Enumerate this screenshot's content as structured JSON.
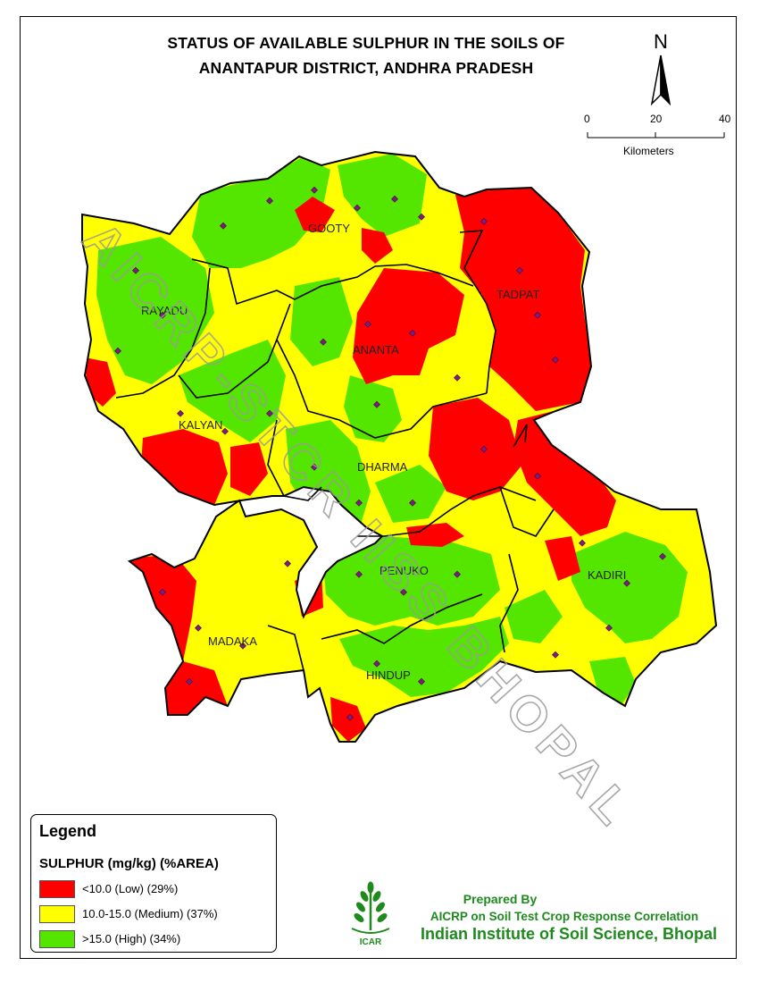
{
  "title": {
    "line1": "STATUS OF AVAILABLE SULPHUR IN THE SOILS OF",
    "line2": "ANANTAPUR  DISTRICT, ANDHRA PRADESH"
  },
  "north_arrow": {
    "letter": "N"
  },
  "scale_bar": {
    "tick0": "0",
    "tick1": "20",
    "tick2": "40",
    "unit": "Kilometers"
  },
  "watermark": "AICRP-STCR IISS BHOPAL",
  "mandals": [
    {
      "name": "GOOTY"
    },
    {
      "name": "TADPAT"
    },
    {
      "name": "RAYADU"
    },
    {
      "name": "ANANTA"
    },
    {
      "name": "KALYAN"
    },
    {
      "name": "DHARMA"
    },
    {
      "name": "PENUKO"
    },
    {
      "name": "KADIRI"
    },
    {
      "name": "MADAKA"
    },
    {
      "name": "HINDUP"
    }
  ],
  "legend": {
    "title": "Legend",
    "subtitle": "SULPHUR (mg/kg) (%AREA)",
    "items": [
      {
        "label": "<10.0 (Low) (29%)",
        "color": "#ff0000"
      },
      {
        "label": "10.0-15.0 (Medium) (37%)",
        "color": "#ffff00"
      },
      {
        "label": ">15.0 (High) (34%)",
        "color": "#55e600"
      }
    ]
  },
  "credits": {
    "line1": "Prepared By",
    "line2": "AICRP on Soil Test Crop Response Correlation",
    "line3": "Indian Institute of Soil Science, Bhopal",
    "logo_text": "ICAR"
  },
  "colors": {
    "low": "#ff0000",
    "medium": "#ffff00",
    "high": "#55e600",
    "credit": "#1e8a1e",
    "sample": "#7a1f7a"
  }
}
